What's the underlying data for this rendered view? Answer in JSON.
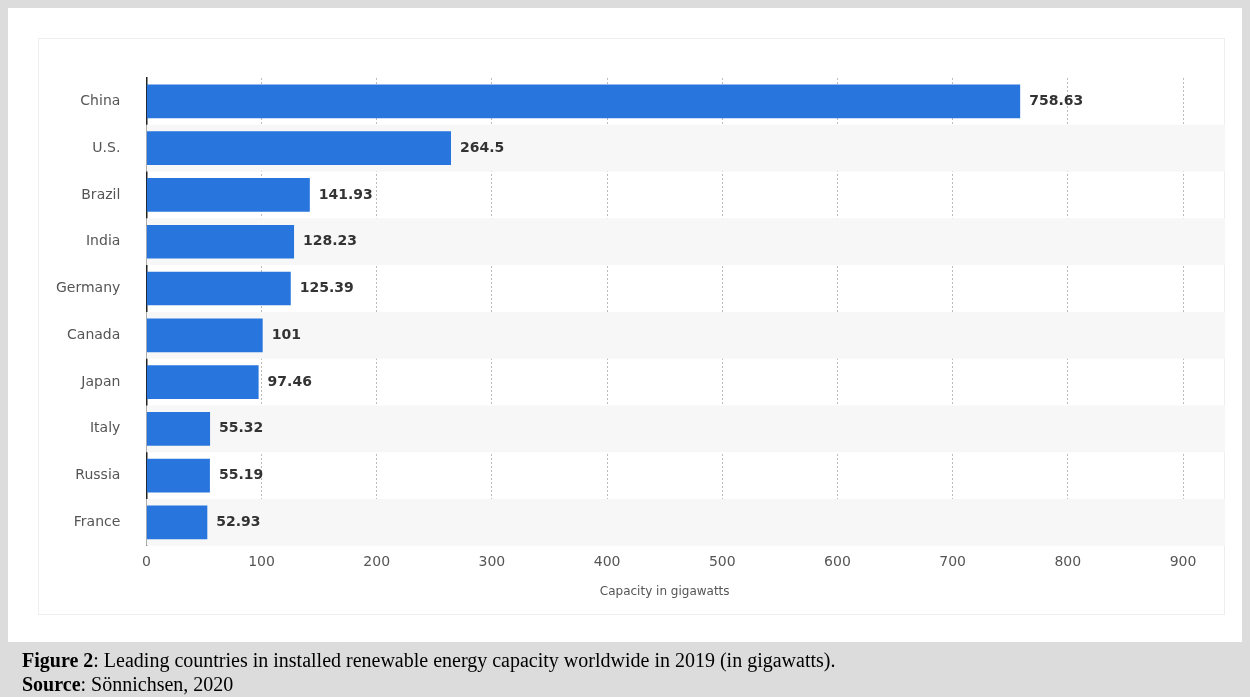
{
  "chart_data": {
    "type": "bar",
    "orientation": "horizontal",
    "categories": [
      "China",
      "U.S.",
      "Brazil",
      "India",
      "Germany",
      "Canada",
      "Japan",
      "Italy",
      "Russia",
      "France"
    ],
    "values": [
      758.63,
      264.5,
      141.93,
      128.23,
      125.39,
      101,
      97.46,
      55.32,
      55.19,
      52.93
    ],
    "color": "#2876dd",
    "xlabel": "Capacity in gigawatts",
    "xlim": [
      0,
      900
    ],
    "xticks": [
      0,
      100,
      200,
      300,
      400,
      500,
      600,
      700,
      800,
      900
    ],
    "grid": "x",
    "legend": false,
    "data_labels": true,
    "annotations": [
      "Figure 2: Leading countries in installed renewable energy capacity worldwide in 2019 (in gigawatts).",
      "Source: Sönnichsen, 2020"
    ]
  }
}
